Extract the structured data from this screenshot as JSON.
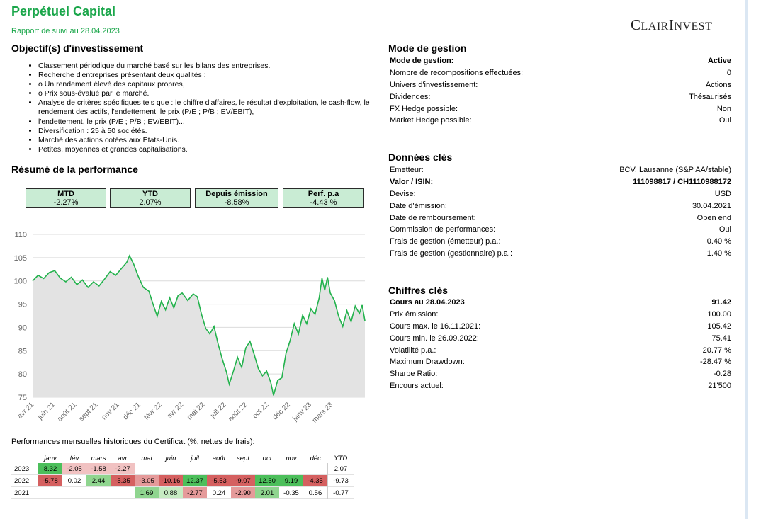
{
  "header": {
    "title": "Perpétuel Capital",
    "subtitle": "Rapport de suivi au 28.04.2023",
    "logo": "ClairInvest"
  },
  "objectives": {
    "heading": "Objectif(s) d'investissement",
    "items": [
      "Classement périodique du marché basé sur les bilans des entreprises.",
      "Recherche d'entreprises présentant deux qualités :",
      "o Un rendement élevé des capitaux propres,",
      "o Prix sous-évalué par le marché.",
      "Analyse de critères spécifiques tels que : le chiffre d'affaires, le résultat d'exploitation, le cash-flow, le rendement des actifs, l'endettement, le prix (P/E ; P/B ; EV/EBIT),",
      "l'endettement, le prix (P/E ; P/B ; EV/EBIT)...",
      "Diversification : 25 à 50 sociétés.",
      "Marché des actions cotées aux Etats-Unis.",
      "Petites, moyennes et grandes capitalisations."
    ]
  },
  "performance_summary": {
    "heading": "Résumé de la performance",
    "kpis": [
      {
        "label": "MTD",
        "value": "-2.27%"
      },
      {
        "label": "YTD",
        "value": "2.07%"
      },
      {
        "label": "Depuis émission",
        "value": "-8.58%"
      },
      {
        "label": "Perf. p.a",
        "value": "-4.43 %"
      }
    ]
  },
  "management": {
    "heading": "Mode de gestion",
    "rows": [
      {
        "label": "Mode de gestion:",
        "value": "Active",
        "bold": true
      },
      {
        "label": "Nombre de recompositions effectuées:",
        "value": "0"
      },
      {
        "label": "Univers d'investissement:",
        "value": "Actions"
      },
      {
        "label": "Dividendes:",
        "value": "Thésaurisés"
      },
      {
        "label": "FX Hedge possible:",
        "value": "Non"
      },
      {
        "label": "Market Hedge possible:",
        "value": "Oui"
      }
    ]
  },
  "key_data": {
    "heading": "Données clés",
    "rows": [
      {
        "label": "Emetteur:",
        "value": "BCV, Lausanne (S&P AA/stable)"
      },
      {
        "label": "Valor / ISIN:",
        "value": "111098817 / CH1110988172",
        "bold": true
      },
      {
        "label": "Devise:",
        "value": "USD"
      },
      {
        "label": "Date d'émission:",
        "value": "30.04.2021"
      },
      {
        "label": "Date de remboursement:",
        "value": "Open end"
      },
      {
        "label": "Commission de performances:",
        "value": "Oui"
      },
      {
        "label": "Frais de gestion (émetteur) p.a.:",
        "value": "0.40 %"
      },
      {
        "label": "Frais de gestion (gestionnaire) p.a.:",
        "value": "1.40 %"
      }
    ]
  },
  "key_figures": {
    "heading": "Chiffres clés",
    "rows": [
      {
        "label": "Cours au 28.04.2023",
        "value": "91.42",
        "bold": true
      },
      {
        "label": "Prix émission:",
        "value": "100.00"
      },
      {
        "label": "Cours max. le 16.11.2021:",
        "value": "105.42"
      },
      {
        "label": "Cours min. le 26.09.2022:",
        "value": "75.41"
      },
      {
        "label": "Volatilité p.a.:",
        "value": "20.77 %"
      },
      {
        "label": "Maximum Drawdown:",
        "value": "-28.47 %"
      },
      {
        "label": "Sharpe Ratio:",
        "value": "-0.28"
      },
      {
        "label": "Encours actuel:",
        "value": "21'500"
      }
    ]
  },
  "chart_data": {
    "type": "area",
    "ylim": [
      75,
      110
    ],
    "yticks": [
      "75",
      "80",
      "85",
      "90",
      "95",
      "100",
      "105",
      "110"
    ],
    "xticks": [
      "avr 21",
      "juin 21",
      "août 21",
      "sept 21",
      "nov 21",
      "déc 21",
      "févr 22",
      "avr 22",
      "mai 22",
      "juil 22",
      "août 22",
      "oct 22",
      "déc 22",
      "janv 23",
      "mars 23"
    ],
    "grid": true,
    "x_span": [
      0,
      24
    ],
    "points": [
      [
        0,
        100.0
      ],
      [
        0.4,
        101.2
      ],
      [
        0.8,
        100.5
      ],
      [
        1.2,
        101.8
      ],
      [
        1.6,
        102.2
      ],
      [
        2.0,
        100.6
      ],
      [
        2.4,
        99.8
      ],
      [
        2.8,
        100.8
      ],
      [
        3.2,
        99.2
      ],
      [
        3.6,
        100.2
      ],
      [
        4.0,
        98.6
      ],
      [
        4.4,
        99.8
      ],
      [
        4.8,
        98.9
      ],
      [
        5.2,
        100.4
      ],
      [
        5.6,
        102.0
      ],
      [
        6.0,
        101.2
      ],
      [
        6.4,
        102.6
      ],
      [
        6.8,
        104.0
      ],
      [
        7.0,
        105.4
      ],
      [
        7.3,
        103.6
      ],
      [
        7.6,
        101.2
      ],
      [
        8.0,
        98.6
      ],
      [
        8.4,
        97.8
      ],
      [
        8.7,
        95.0
      ],
      [
        9.0,
        92.4
      ],
      [
        9.3,
        95.6
      ],
      [
        9.6,
        93.8
      ],
      [
        9.9,
        96.4
      ],
      [
        10.2,
        94.2
      ],
      [
        10.5,
        96.8
      ],
      [
        10.8,
        97.4
      ],
      [
        11.2,
        95.8
      ],
      [
        11.6,
        97.2
      ],
      [
        11.9,
        96.6
      ],
      [
        12.2,
        92.8
      ],
      [
        12.5,
        89.8
      ],
      [
        12.8,
        88.6
      ],
      [
        13.1,
        90.2
      ],
      [
        13.4,
        86.4
      ],
      [
        13.7,
        83.2
      ],
      [
        14.0,
        80.4
      ],
      [
        14.2,
        77.8
      ],
      [
        14.5,
        80.6
      ],
      [
        14.8,
        83.6
      ],
      [
        15.1,
        81.4
      ],
      [
        15.4,
        85.6
      ],
      [
        15.7,
        87.0
      ],
      [
        16.0,
        84.2
      ],
      [
        16.3,
        81.2
      ],
      [
        16.6,
        79.6
      ],
      [
        16.9,
        80.6
      ],
      [
        17.2,
        78.2
      ],
      [
        17.4,
        75.4
      ],
      [
        17.7,
        78.6
      ],
      [
        18.0,
        79.2
      ],
      [
        18.3,
        84.4
      ],
      [
        18.6,
        87.2
      ],
      [
        18.9,
        90.8
      ],
      [
        19.2,
        88.6
      ],
      [
        19.5,
        92.6
      ],
      [
        19.8,
        90.8
      ],
      [
        20.1,
        94.0
      ],
      [
        20.4,
        92.8
      ],
      [
        20.7,
        96.4
      ],
      [
        20.9,
        100.6
      ],
      [
        21.1,
        98.0
      ],
      [
        21.3,
        100.8
      ],
      [
        21.5,
        97.4
      ],
      [
        21.8,
        95.8
      ],
      [
        22.1,
        92.4
      ],
      [
        22.4,
        90.2
      ],
      [
        22.7,
        93.6
      ],
      [
        23.0,
        91.2
      ],
      [
        23.3,
        94.6
      ],
      [
        23.6,
        93.0
      ],
      [
        23.8,
        94.8
      ],
      [
        24.0,
        91.42
      ]
    ]
  },
  "monthly": {
    "caption": "Performances mensuelles historiques du Certificat (%, nettes de frais):",
    "months": [
      "janv",
      "fév",
      "mars",
      "avr",
      "mai",
      "juin",
      "juil",
      "août",
      "sept",
      "oct",
      "nov",
      "déc"
    ],
    "ytd_label": "YTD",
    "rows": [
      {
        "year": "2023",
        "values": [
          "8.32",
          "-2.05",
          "-1.58",
          "-2.27",
          "",
          "",
          "",
          "",
          "",
          "",
          "",
          ""
        ],
        "ytd": "2.07"
      },
      {
        "year": "2022",
        "values": [
          "-5.78",
          "0.02",
          "2.44",
          "-5.35",
          "-3.05",
          "-10.16",
          "12.37",
          "-5.53",
          "-9.07",
          "12.50",
          "9.19",
          "-4.35"
        ],
        "ytd": "-9.73"
      },
      {
        "year": "2021",
        "values": [
          "",
          "",
          "",
          "",
          "1.69",
          "0.88",
          "-2.77",
          "0.24",
          "-2.90",
          "2.01",
          "-0.35",
          "0.56"
        ],
        "ytd": "-0.77"
      }
    ]
  }
}
